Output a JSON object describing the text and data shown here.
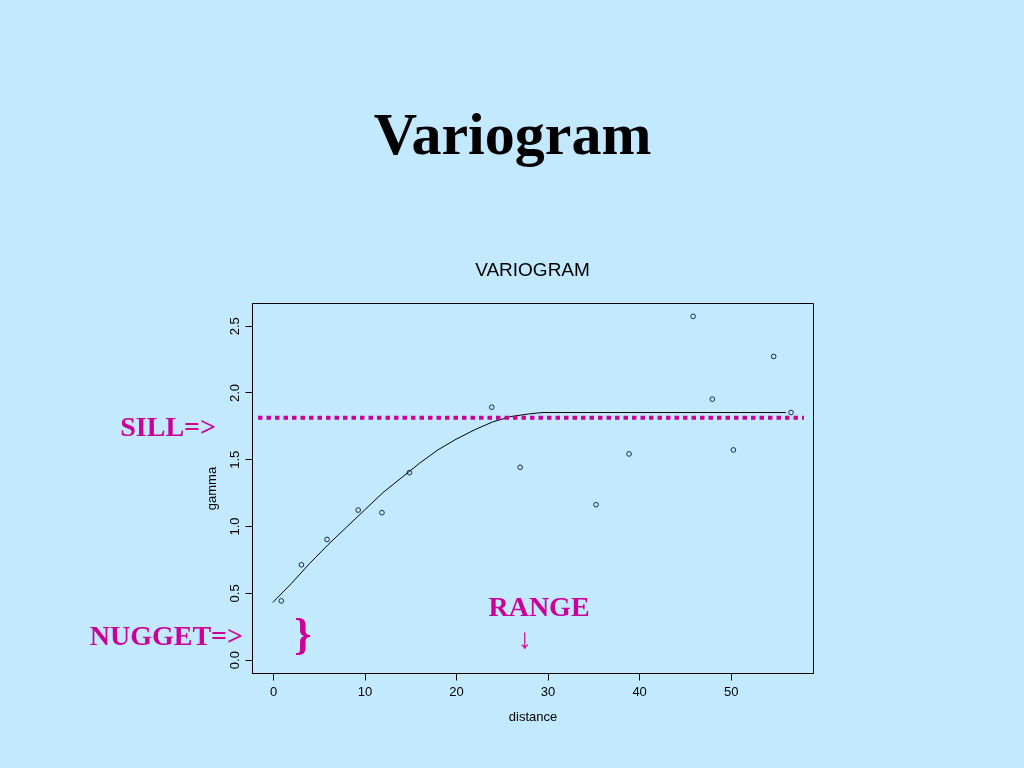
{
  "chart_data": {
    "type": "scatter",
    "title": "Variogram",
    "subtitle": "VARIOGRAM",
    "xlabel": "distance",
    "ylabel": "gamma",
    "xlim": [
      -2.3,
      59.0
    ],
    "ylim": [
      -0.1,
      2.67
    ],
    "xticks": [
      0,
      10,
      20,
      30,
      40,
      50
    ],
    "yticks": [
      {
        "value": 0,
        "label": "0.0"
      },
      0.5,
      {
        "value": 1,
        "label": "1.0"
      },
      1.5,
      {
        "value": 2,
        "label": "2.0"
      },
      2.5
    ],
    "series": [
      {
        "color": "#1c2a48",
        "marker": "circle",
        "x": [
          0.9,
          3.1,
          5.9,
          9.3,
          11.9,
          14.9,
          23.9,
          27.0,
          35.3,
          38.9,
          45.9,
          48.0,
          50.3,
          54.7,
          56.6
        ],
        "values": [
          0.44,
          0.71,
          0.9,
          1.12,
          1.1,
          1.4,
          1.89,
          1.44,
          1.16,
          1.54,
          2.57,
          1.95,
          1.57,
          2.27,
          1.85
        ]
      },
      {
        "type": "line",
        "color": "#000000",
        "line_style": "solid",
        "x": [
          0,
          2,
          4,
          6,
          8,
          10,
          12,
          14,
          16,
          18,
          20,
          22,
          24,
          26,
          28,
          29.5,
          56
        ],
        "values": [
          0.43,
          0.57,
          0.72,
          0.86,
          0.99,
          1.12,
          1.25,
          1.36,
          1.47,
          1.57,
          1.65,
          1.72,
          1.78,
          1.82,
          1.84,
          1.85,
          1.85
        ]
      }
    ],
    "ref_lines": [
      {
        "axis": "y",
        "value": 1.81,
        "label": "SILL=>",
        "color": "#cc0099",
        "line_style": "dotted"
      }
    ],
    "annotations": [
      "NUGGET=>",
      "}",
      "RANGE",
      "↓"
    ]
  }
}
